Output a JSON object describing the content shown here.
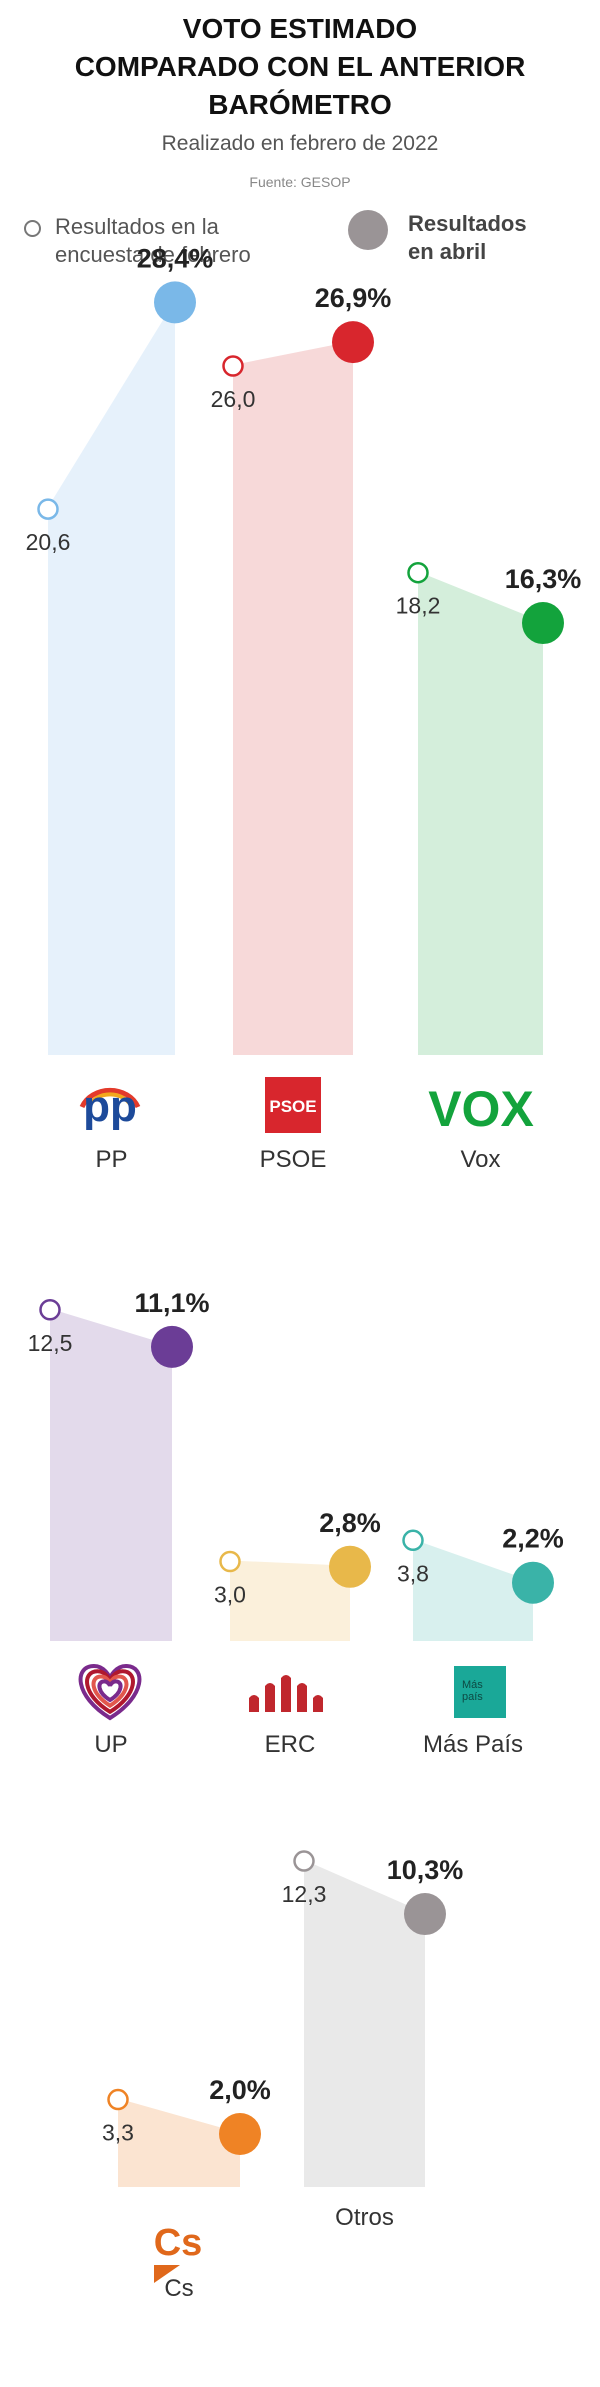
{
  "header": {
    "title_lines": [
      "VOTO ESTIMADO",
      "COMPARADO CON EL ANTERIOR",
      "BARÓMETRO"
    ],
    "subtitle": "Realizado en febrero de 2022",
    "source": "Fuente: GESOP"
  },
  "legend": {
    "previous": [
      "Resultados en la",
      "encuesta de febrero"
    ],
    "current": [
      "Resultados",
      "en abril"
    ],
    "previous_color": "#777777",
    "current_color": "#9a9496"
  },
  "chart_data": {
    "type": "area",
    "title": "VOTO ESTIMADO COMPARADO CON EL ANTERIOR BARÓMETRO",
    "subtitle": "Realizado en febrero de 2022",
    "series": [
      {
        "name": "Resultados en la encuesta de febrero"
      },
      {
        "name": "Resultados en abril"
      }
    ],
    "categories": [
      "PP",
      "PSOE",
      "Vox",
      "UP",
      "ERC",
      "Más País",
      "Cs",
      "Otros"
    ],
    "parties": [
      {
        "name": "PP",
        "february": 20.6,
        "feb_label": "20,6",
        "april": 28.4,
        "apr_label": "28,4%",
        "color": "#7ab8e8",
        "fill": "#e6f1fb",
        "logo": "pp-logo",
        "logo_text": "pp",
        "logo_color": "#1d4a9a"
      },
      {
        "name": "PSOE",
        "february": 26.0,
        "feb_label": "26,0",
        "april": 26.9,
        "apr_label": "26,9%",
        "color": "#d8262d",
        "fill": "#f7d9d9",
        "logo": "psoe-logo",
        "logo_text": "PSOE",
        "logo_color": "#d8262d"
      },
      {
        "name": "Vox",
        "february": 18.2,
        "feb_label": "18,2",
        "april": 16.3,
        "apr_label": "16,3%",
        "color": "#13a33c",
        "fill": "#d4eedb",
        "logo": "vox-logo",
        "logo_text": "VOX",
        "logo_color": "#13a33c"
      },
      {
        "name": "UP",
        "february": 12.5,
        "feb_label": "12,5",
        "april": 11.1,
        "apr_label": "11,1%",
        "color": "#6b3d96",
        "fill": "#e3daeb",
        "logo": "heart-logo",
        "logo_text": "",
        "logo_color": "#b0182e"
      },
      {
        "name": "ERC",
        "february": 3.0,
        "feb_label": "3,0",
        "april": 2.8,
        "apr_label": "2,8%",
        "color": "#e8b84a",
        "fill": "#fbf0db",
        "logo": "erc-logo",
        "logo_text": "",
        "logo_color": "#c0272d"
      },
      {
        "name": "Más País",
        "february": 3.8,
        "feb_label": "3,8",
        "april": 2.2,
        "apr_label": "2,2%",
        "color": "#3ab3a8",
        "fill": "#d8f0ee",
        "logo": "mas-pais-logo",
        "logo_text": "Más país",
        "logo_color": "#1aa898"
      },
      {
        "name": "Cs",
        "february": 3.3,
        "feb_label": "3,3",
        "april": 2.0,
        "apr_label": "2,0%",
        "color": "#ef8325",
        "fill": "#fbe4d1",
        "logo": "cs-logo",
        "logo_text": "Cs",
        "logo_color": "#e0681b"
      },
      {
        "name": "Otros",
        "february": 12.3,
        "feb_label": "12,3",
        "april": 10.3,
        "apr_label": "10,3%",
        "color": "#9a9496",
        "fill": "#e9e9e9",
        "logo": "none",
        "logo_text": "",
        "logo_color": "#9a9496"
      }
    ]
  }
}
